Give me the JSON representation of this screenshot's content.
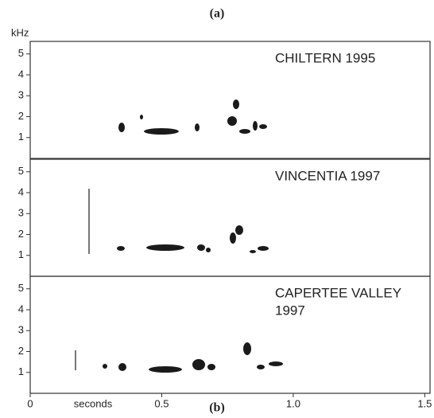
{
  "figure_labels": {
    "top": "(a)",
    "bottom": "(b)"
  },
  "chart_data": [
    {
      "type": "spectrogram",
      "title": [
        "CHILTERN 1995"
      ],
      "ylabel": "kHz",
      "ylim": [
        0,
        5.6
      ],
      "yticks": [
        1,
        2,
        3,
        4,
        5
      ]
    },
    {
      "type": "spectrogram",
      "title": [
        "VINCENTIA 1997"
      ],
      "ylim": [
        0,
        5.6
      ],
      "yticks": [
        1,
        2,
        3,
        4,
        5
      ]
    },
    {
      "type": "spectrogram",
      "title": [
        "CAPERTEE VALLEY",
        "1997"
      ],
      "ylim": [
        0,
        5.6
      ],
      "yticks": [
        1,
        2,
        3,
        4,
        5
      ],
      "xlabel": "seconds",
      "xlim": [
        0,
        1.52
      ],
      "xticks": [
        0,
        0.5,
        {
          "value": 1,
          "label": "1.0"
        },
        1.5
      ]
    }
  ]
}
